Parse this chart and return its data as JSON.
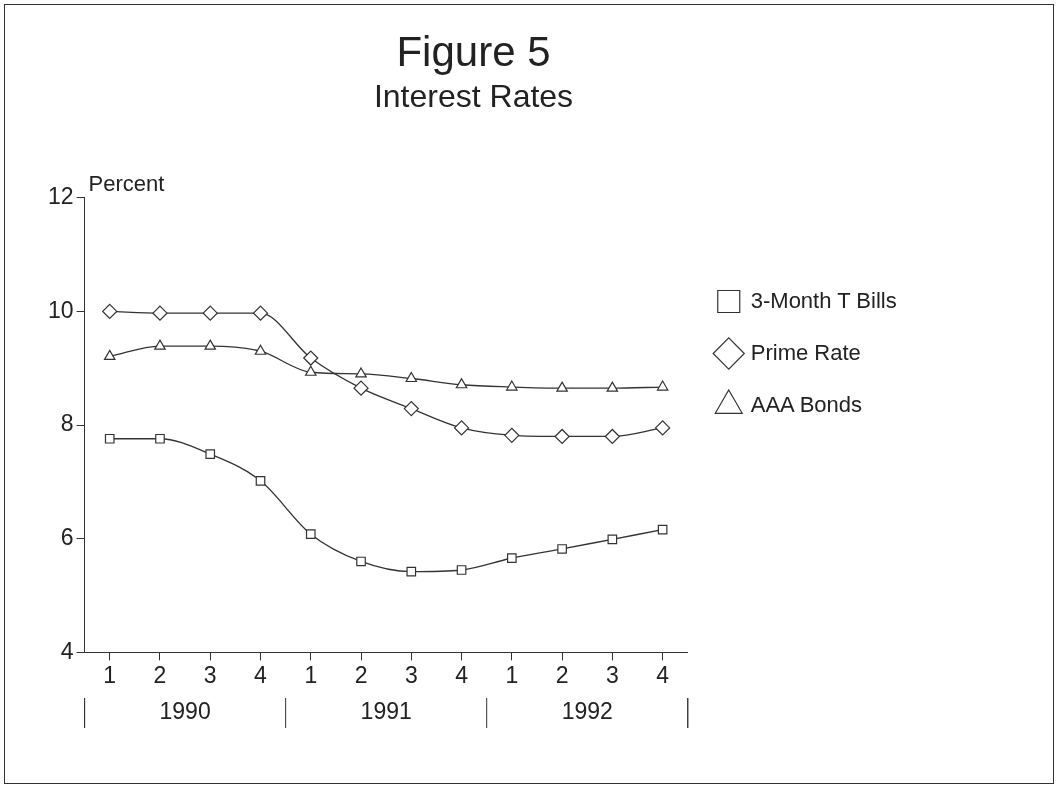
{
  "chart_data": {
    "type": "line",
    "title": "Figure 5",
    "subtitle": "Interest Rates",
    "ylabel": "Percent",
    "categories": [
      "1",
      "2",
      "3",
      "4",
      "1",
      "2",
      "3",
      "4",
      "1",
      "2",
      "3",
      "4"
    ],
    "series": [
      {
        "name": "3-Month T Bills",
        "color": "#333333",
        "marker": "square",
        "values": [
          7.76,
          7.76,
          7.49,
          7.02,
          6.08,
          5.6,
          5.42,
          5.45,
          5.66,
          5.82,
          5.99,
          6.16
        ]
      },
      {
        "name": "Prime Rate",
        "color": "#333333",
        "marker": "diamond",
        "values": [
          10.0,
          9.97,
          9.97,
          9.97,
          9.18,
          8.65,
          8.29,
          7.95,
          7.82,
          7.8,
          7.8,
          7.95
        ]
      },
      {
        "name": "AAA Bonds",
        "color": "#333333",
        "marker": "triangle",
        "values": [
          9.21,
          9.39,
          9.39,
          9.3,
          8.93,
          8.9,
          8.82,
          8.71,
          8.67,
          8.65,
          8.65,
          8.67
        ]
      }
    ],
    "annotations": [
      "1990",
      "1991",
      "1992"
    ],
    "ylim": [
      4,
      12
    ],
    "yticks": [
      4,
      6,
      8,
      10,
      12
    ],
    "grid": false,
    "legend": "right",
    "line_style": "solid"
  }
}
